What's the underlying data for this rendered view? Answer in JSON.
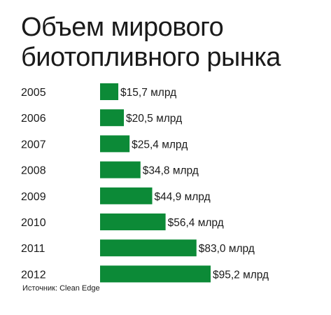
{
  "chart_data": {
    "type": "bar",
    "orientation": "horizontal",
    "title_lines": [
      "Объем мирового",
      "биотопливного рынка"
    ],
    "categories": [
      "2005",
      "2006",
      "2007",
      "2008",
      "2009",
      "2010",
      "2011",
      "2012"
    ],
    "values": [
      15.7,
      20.5,
      25.4,
      34.8,
      44.9,
      56.4,
      83.0,
      95.2
    ],
    "value_labels": [
      "$15,7 млрд",
      "$20,5 млрд",
      "$25,4 млрд",
      "$34,8 млрд",
      "$44,9 млрд",
      "$56,4 млрд",
      "$83,0 млрд",
      "$95,2 млрд"
    ],
    "xlim": [
      0,
      95.2
    ],
    "grid": false,
    "legend": "none",
    "bar_color": "#0c8a37"
  },
  "source": "Источник: Clean Edge"
}
